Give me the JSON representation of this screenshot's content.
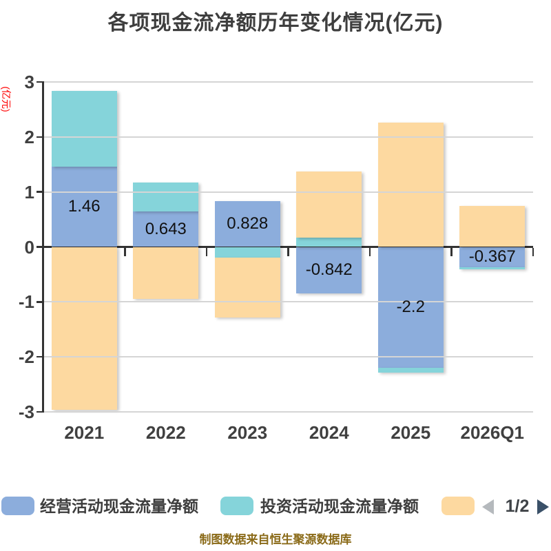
{
  "title": "各项现金流净额历年变化情况(亿元)",
  "y_axis_name": "(亿元)",
  "caption": "制图数据来自恒生聚源数据库",
  "legend": {
    "items": [
      {
        "label": "经营活动现金流量净额",
        "color": "#8CADDC"
      },
      {
        "label": "投资活动现金流量净额",
        "color": "#85D4DA"
      },
      {
        "label": "",
        "color": "#FDD9A0"
      }
    ],
    "pager": {
      "page": "1/2"
    }
  },
  "chart_data": {
    "type": "bar",
    "stacked": true,
    "title": "各项现金流净额历年变化情况(亿元)",
    "categories": [
      "2021",
      "2022",
      "2023",
      "2024",
      "2025",
      "2026Q1"
    ],
    "series": [
      {
        "name": "经营活动现金流量净额",
        "color": "#8CADDC",
        "values": [
          1.46,
          0.643,
          0.828,
          -0.842,
          -2.2,
          -0.367
        ]
      },
      {
        "name": "投资活动现金流量净额",
        "color": "#85D4DA",
        "values": [
          1.38,
          0.53,
          -0.2,
          0.17,
          -0.09,
          -0.04
        ]
      },
      {
        "name": "",
        "color": "#FDD9A0",
        "values": [
          -2.96,
          -0.94,
          -1.09,
          1.2,
          2.26,
          0.75
        ]
      }
    ],
    "data_labels": {
      "series_index": 0,
      "values": [
        "1.46",
        "0.643",
        "0.828",
        "-0.842",
        "-2.2",
        "-0.367"
      ]
    },
    "y_ticks": [
      3,
      2,
      1,
      0,
      -1,
      -2,
      -3
    ],
    "ylim": [
      -3,
      3
    ],
    "grid": true,
    "legend_position": "bottom"
  },
  "colors": {
    "background": "#FFFFFF",
    "title": "#3E3E3E",
    "axis_label": "#404040",
    "axis_line": "#333333",
    "gridline": "#D5D5D5",
    "y_axis_name": "#FF0000",
    "value_label": "#111111",
    "caption": "#8A6A18",
    "pager_prev": "#B5B9BD",
    "pager_next": "#3A5068",
    "pager_text": "#3F4347"
  }
}
